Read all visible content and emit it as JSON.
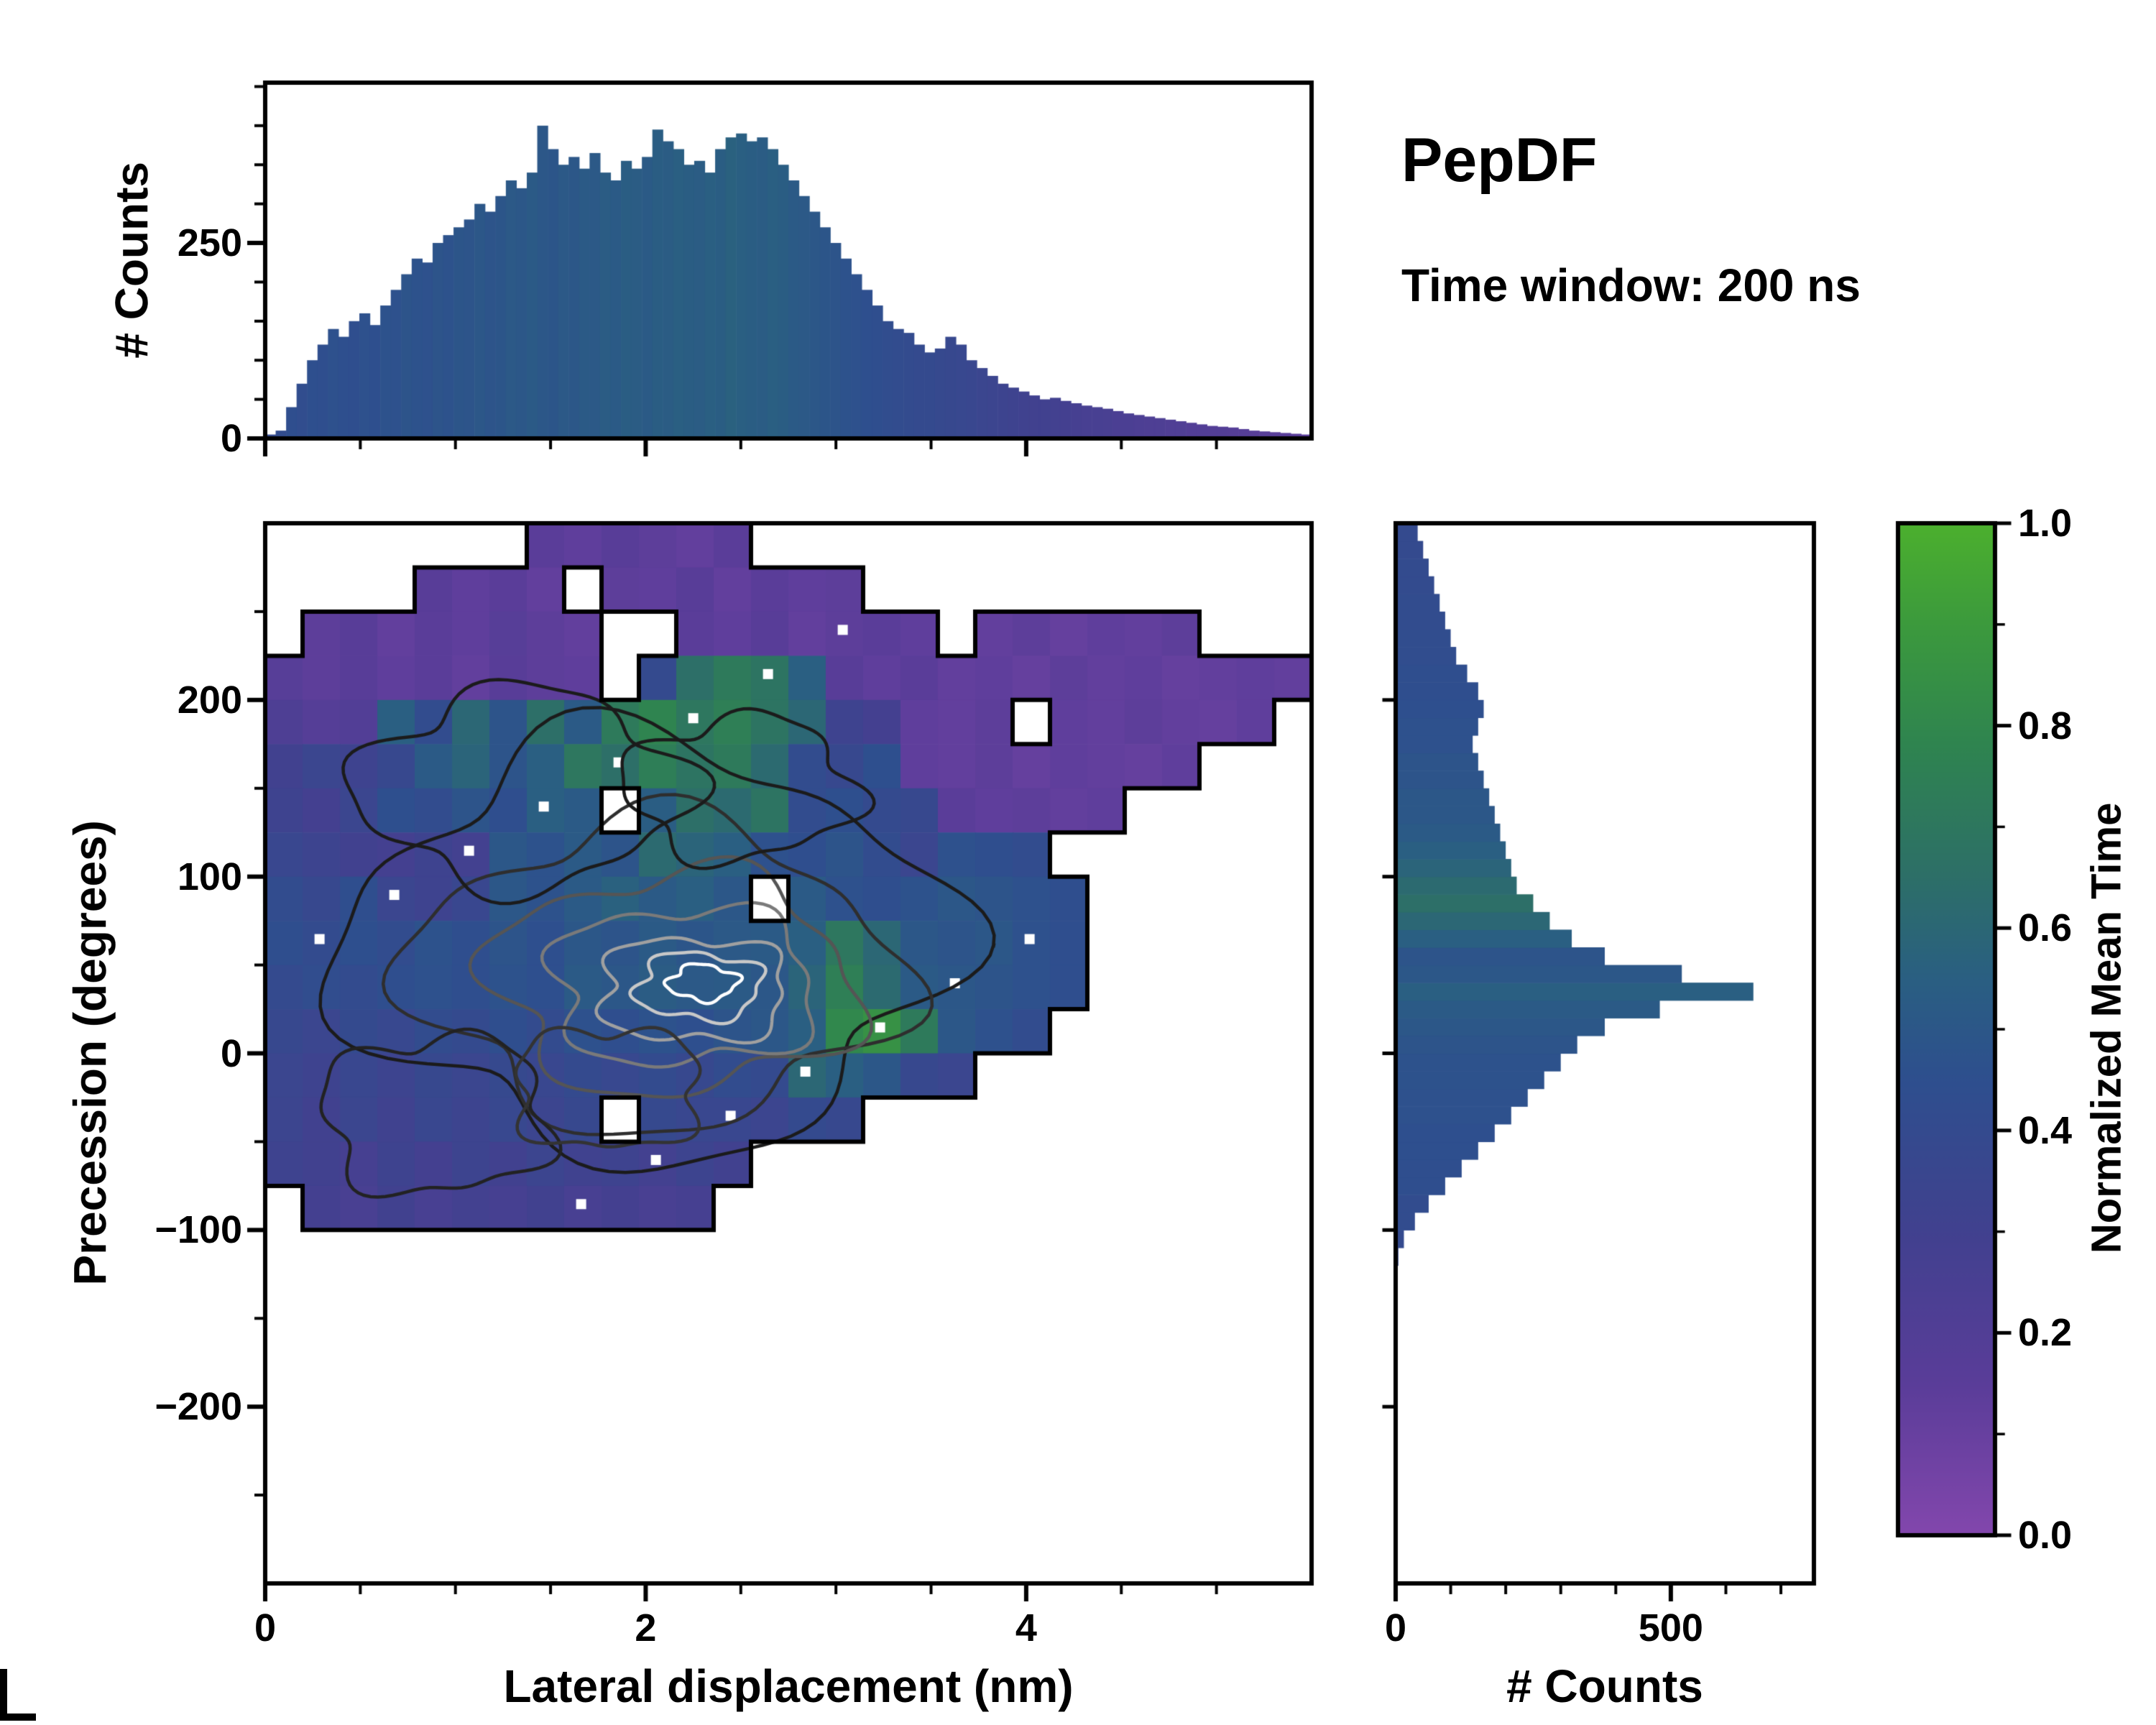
{
  "header": {
    "title": "PepDF",
    "subtitle": "Time window: 200 ns"
  },
  "colorbar": {
    "label": "Normalized Mean Time",
    "tick_values": [
      0,
      0.2,
      0.4,
      0.6,
      0.8,
      1.0
    ],
    "tick_labels": [
      "0.0",
      "0.2",
      "0.4",
      "0.6",
      "0.8",
      "1.0"
    ],
    "stops": [
      [
        0,
        "#8347ad"
      ],
      [
        0.15,
        "#5a3d99"
      ],
      [
        0.3,
        "#41418f"
      ],
      [
        0.45,
        "#2e4f8e"
      ],
      [
        0.55,
        "#2a5f82"
      ],
      [
        0.65,
        "#2d6f68"
      ],
      [
        0.78,
        "#2f8450"
      ],
      [
        0.9,
        "#3c9a3d"
      ],
      [
        1,
        "#4cb02e"
      ]
    ]
  },
  "chart_data": [
    {
      "type": "bar",
      "name": "lateral-displacement-histogram",
      "orientation": "vertical",
      "ylabel": "# Counts",
      "xlim": [
        0,
        5.5
      ],
      "ylim": [
        0,
        455
      ],
      "ytick_values": [
        0,
        250
      ],
      "ytick_labels": [
        "0",
        "250"
      ],
      "bin_start": 0,
      "bin_width": 0.055,
      "values": [
        5,
        10,
        40,
        70,
        100,
        120,
        140,
        130,
        150,
        160,
        145,
        170,
        190,
        210,
        230,
        225,
        250,
        260,
        270,
        280,
        300,
        290,
        310,
        330,
        320,
        340,
        400,
        370,
        350,
        360,
        345,
        365,
        340,
        330,
        355,
        345,
        360,
        395,
        380,
        370,
        350,
        355,
        340,
        370,
        385,
        390,
        380,
        385,
        370,
        350,
        330,
        310,
        290,
        270,
        250,
        230,
        210,
        190,
        170,
        150,
        140,
        135,
        120,
        110,
        115,
        130,
        120,
        100,
        90,
        80,
        70,
        65,
        60,
        55,
        50,
        52,
        48,
        45,
        42,
        40,
        38,
        35,
        32,
        30,
        28,
        26,
        24,
        22,
        20,
        18,
        16,
        15,
        14,
        12,
        10,
        9,
        8,
        7,
        6,
        5
      ],
      "color_values": [
        0.4,
        0.42,
        0.44,
        0.43,
        0.45,
        0.44,
        0.46,
        0.45,
        0.44,
        0.46,
        0.45,
        0.47,
        0.46,
        0.48,
        0.47,
        0.46,
        0.48,
        0.47,
        0.49,
        0.48,
        0.5,
        0.48,
        0.49,
        0.51,
        0.5,
        0.52,
        0.5,
        0.49,
        0.51,
        0.5,
        0.52,
        0.51,
        0.53,
        0.52,
        0.54,
        0.53,
        0.52,
        0.54,
        0.53,
        0.55,
        0.54,
        0.53,
        0.55,
        0.54,
        0.56,
        0.55,
        0.54,
        0.53,
        0.55,
        0.54,
        0.52,
        0.51,
        0.5,
        0.49,
        0.48,
        0.47,
        0.46,
        0.45,
        0.44,
        0.43,
        0.42,
        0.41,
        0.4,
        0.4,
        0.39,
        0.38,
        0.37,
        0.36,
        0.35,
        0.34,
        0.33,
        0.32,
        0.31,
        0.3,
        0.3,
        0.29,
        0.28,
        0.27,
        0.26,
        0.26,
        0.25,
        0.24,
        0.24,
        0.23,
        0.22,
        0.22,
        0.21,
        0.21,
        0.2,
        0.2,
        0.19,
        0.19,
        0.18,
        0.18,
        0.17,
        0.17,
        0.16,
        0.16,
        0.15,
        0.15
      ]
    },
    {
      "type": "heatmap",
      "name": "precession-vs-lateral-displacement-heatmap",
      "xlabel": "Lateral displacement (nm)",
      "ylabel": "Precession (degrees)",
      "color_label": "Normalized Mean Time",
      "xlim": [
        0,
        5.5
      ],
      "ylim": [
        -300,
        300
      ],
      "xtick_values": [
        0,
        2,
        4
      ],
      "xtick_labels": [
        "0",
        "2",
        "4"
      ],
      "ytick_values": [
        200,
        100,
        0,
        -100,
        -200
      ],
      "ytick_labels": [
        "200",
        "100",
        "0",
        "−100",
        "−200"
      ],
      "grid": {
        "ncols": 28,
        "nrows": 24,
        "x_min": 0,
        "x_max": 5.5,
        "y_max": 300,
        "y_min": -300
      },
      "values": [
        [
          null,
          null,
          null,
          null,
          null,
          null,
          null,
          0.15,
          0.13,
          0.16,
          0.14,
          0.12,
          0.15,
          null,
          null,
          null,
          null,
          null,
          null,
          null,
          null,
          null,
          null,
          null,
          null,
          null,
          null,
          null
        ],
        [
          null,
          null,
          null,
          null,
          0.16,
          0.13,
          0.15,
          0.12,
          null,
          0.14,
          0.13,
          0.16,
          0.12,
          0.15,
          0.13,
          0.14,
          null,
          null,
          null,
          null,
          null,
          null,
          null,
          null,
          null,
          null,
          null,
          null
        ],
        [
          null,
          0.14,
          0.16,
          0.12,
          0.15,
          0.13,
          0.17,
          0.14,
          0.12,
          null,
          null,
          0.15,
          0.13,
          0.16,
          0.12,
          0.14,
          0.15,
          0.13,
          null,
          0.12,
          0.14,
          0.11,
          0.13,
          0.12,
          0.14,
          null,
          null,
          null
        ],
        [
          0.17,
          0.14,
          0.16,
          0.13,
          0.15,
          0.12,
          0.16,
          0.14,
          0.13,
          null,
          0.4,
          0.65,
          0.72,
          0.68,
          0.55,
          0.16,
          0.13,
          0.15,
          0.12,
          0.13,
          0.11,
          0.14,
          0.12,
          0.13,
          0.11,
          0.12,
          0.13,
          0.12
        ],
        [
          0.22,
          0.18,
          0.2,
          0.55,
          0.42,
          0.6,
          0.48,
          0.65,
          0.52,
          0.72,
          0.78,
          0.7,
          0.75,
          0.68,
          0.6,
          0.32,
          0.28,
          0.13,
          0.12,
          0.14,
          null,
          0.13,
          0.12,
          0.14,
          0.12,
          0.11,
          0.13,
          null
        ],
        [
          0.3,
          0.35,
          0.32,
          0.38,
          0.52,
          0.58,
          0.48,
          0.55,
          0.7,
          0.65,
          0.74,
          0.68,
          0.72,
          0.62,
          0.42,
          0.38,
          0.45,
          0.13,
          0.12,
          0.14,
          0.11,
          0.13,
          0.12,
          0.11,
          0.13,
          null,
          null,
          null
        ],
        [
          0.32,
          0.28,
          0.35,
          0.45,
          0.42,
          0.48,
          0.44,
          0.55,
          0.52,
          null,
          0.54,
          0.65,
          0.62,
          0.68,
          0.42,
          0.45,
          0.4,
          0.38,
          0.15,
          0.13,
          0.14,
          0.12,
          0.13,
          null,
          null,
          null,
          null,
          null
        ],
        [
          0.36,
          0.33,
          0.3,
          0.28,
          0.32,
          0.29,
          0.5,
          0.47,
          0.52,
          0.48,
          0.62,
          0.58,
          0.55,
          0.46,
          0.44,
          0.48,
          0.42,
          0.35,
          0.46,
          0.44,
          0.42,
          null,
          null,
          null,
          null,
          null,
          null,
          null
        ],
        [
          0.42,
          0.38,
          0.44,
          0.35,
          0.32,
          0.36,
          0.5,
          0.47,
          0.52,
          0.56,
          0.52,
          0.55,
          0.5,
          null,
          0.52,
          0.46,
          0.44,
          0.47,
          0.5,
          0.48,
          0.46,
          0.44,
          null,
          null,
          null,
          null,
          null,
          null
        ],
        [
          0.44,
          0.41,
          0.45,
          0.42,
          0.47,
          0.44,
          0.48,
          0.45,
          0.5,
          0.48,
          0.52,
          0.49,
          0.51,
          0.52,
          0.55,
          0.7,
          0.6,
          0.5,
          0.48,
          0.5,
          0.46,
          0.44,
          null,
          null,
          null,
          null,
          null,
          null
        ],
        [
          0.4,
          0.43,
          0.41,
          0.44,
          0.46,
          0.44,
          0.47,
          0.45,
          0.52,
          0.5,
          0.53,
          0.51,
          0.52,
          0.5,
          0.58,
          0.75,
          0.62,
          0.52,
          0.5,
          0.48,
          0.46,
          0.44,
          null,
          null,
          null,
          null,
          null,
          null
        ],
        [
          0.38,
          0.35,
          0.4,
          0.37,
          0.42,
          0.4,
          0.44,
          0.41,
          0.46,
          0.44,
          0.47,
          0.45,
          0.48,
          0.5,
          0.55,
          0.8,
          0.85,
          0.72,
          0.5,
          0.46,
          0.42,
          null,
          null,
          null,
          null,
          null,
          null,
          null
        ],
        [
          0.35,
          0.32,
          0.36,
          0.33,
          0.38,
          0.35,
          0.39,
          0.36,
          0.4,
          0.37,
          0.41,
          0.38,
          0.42,
          0.4,
          0.6,
          0.55,
          0.5,
          0.38,
          0.35,
          null,
          null,
          null,
          null,
          null,
          null,
          null,
          null,
          null
        ],
        [
          0.34,
          0.3,
          0.35,
          0.31,
          0.36,
          0.33,
          0.37,
          0.34,
          0.38,
          null,
          0.39,
          0.36,
          0.36,
          0.34,
          0.4,
          0.38,
          null,
          null,
          null,
          null,
          null,
          null,
          null,
          null,
          null,
          null,
          null,
          null
        ],
        [
          0.32,
          0.3,
          0.27,
          0.32,
          0.28,
          0.33,
          0.3,
          0.34,
          0.31,
          0.32,
          0.29,
          0.33,
          0.3,
          null,
          null,
          null,
          null,
          null,
          null,
          null,
          null,
          null,
          null,
          null,
          null,
          null,
          null,
          null
        ],
        [
          null,
          0.28,
          0.25,
          0.3,
          0.26,
          0.29,
          0.27,
          0.3,
          0.26,
          0.28,
          0.25,
          0.27,
          null,
          null,
          null,
          null,
          null,
          null,
          null,
          null,
          null,
          null,
          null,
          null,
          null,
          null,
          null,
          null
        ],
        [
          null,
          null,
          null,
          null,
          null,
          null,
          null,
          null,
          null,
          null,
          null,
          null,
          null,
          null,
          null,
          null,
          null,
          null,
          null,
          null,
          null,
          null,
          null,
          null,
          null,
          null,
          null,
          null
        ],
        [
          null,
          null,
          null,
          null,
          null,
          null,
          null,
          null,
          null,
          null,
          null,
          null,
          null,
          null,
          null,
          null,
          null,
          null,
          null,
          null,
          null,
          null,
          null,
          null,
          null,
          null,
          null,
          null
        ],
        [
          null,
          null,
          null,
          null,
          null,
          null,
          null,
          null,
          null,
          null,
          null,
          null,
          null,
          null,
          null,
          null,
          null,
          null,
          null,
          null,
          null,
          null,
          null,
          null,
          null,
          null,
          null,
          null
        ],
        [
          null,
          null,
          null,
          null,
          null,
          null,
          null,
          null,
          null,
          null,
          null,
          null,
          null,
          null,
          null,
          null,
          null,
          null,
          null,
          null,
          null,
          null,
          null,
          null,
          null,
          null,
          null,
          null
        ],
        [
          null,
          null,
          null,
          null,
          null,
          null,
          null,
          null,
          null,
          null,
          null,
          null,
          null,
          null,
          null,
          null,
          null,
          null,
          null,
          null,
          null,
          null,
          null,
          null,
          null,
          null,
          null,
          null
        ],
        [
          null,
          null,
          null,
          null,
          null,
          null,
          null,
          null,
          null,
          null,
          null,
          null,
          null,
          null,
          null,
          null,
          null,
          null,
          null,
          null,
          null,
          null,
          null,
          null,
          null,
          null,
          null,
          null
        ],
        [
          null,
          null,
          null,
          null,
          null,
          null,
          null,
          null,
          null,
          null,
          null,
          null,
          null,
          null,
          null,
          null,
          null,
          null,
          null,
          null,
          null,
          null,
          null,
          null,
          null,
          null,
          null,
          null
        ],
        [
          null,
          null,
          null,
          null,
          null,
          null,
          null,
          null,
          null,
          null,
          null,
          null,
          null,
          null,
          null,
          null,
          null,
          null,
          null,
          null,
          null,
          null,
          null,
          null,
          null,
          null,
          null,
          null
        ]
      ],
      "contour_rings": [
        {
          "cx": 2.0,
          "cy": 60,
          "rx": 1.55,
          "ry": 115,
          "color": "#1b1b1b",
          "seed": 1
        },
        {
          "cx": 2.05,
          "cy": 45,
          "rx": 1.25,
          "ry": 85,
          "color": "#2e2e2e",
          "seed": 2
        },
        {
          "cx": 2.15,
          "cy": 40,
          "rx": 0.95,
          "ry": 62,
          "color": "#555555",
          "seed": 3
        },
        {
          "cx": 2.2,
          "cy": 38,
          "rx": 0.7,
          "ry": 45,
          "color": "#7a7a7a",
          "seed": 4
        },
        {
          "cx": 2.25,
          "cy": 36,
          "rx": 0.5,
          "ry": 30,
          "color": "#a0a0a0",
          "seed": 5
        },
        {
          "cx": 2.28,
          "cy": 38,
          "rx": 0.33,
          "ry": 19,
          "color": "#c8c8c8",
          "seed": 6
        },
        {
          "cx": 2.3,
          "cy": 40,
          "rx": 0.18,
          "ry": 10,
          "color": "#ffffff",
          "seed": 7
        },
        {
          "cx": 1.35,
          "cy": 150,
          "rx": 0.85,
          "ry": 55,
          "color": "#1b1b1b",
          "seed": 8
        },
        {
          "cx": 2.5,
          "cy": 150,
          "rx": 0.6,
          "ry": 40,
          "color": "#1b1b1b",
          "seed": 9
        },
        {
          "cx": 0.9,
          "cy": -35,
          "rx": 0.6,
          "ry": 45,
          "color": "#222222",
          "seed": 10
        },
        {
          "cx": 1.8,
          "cy": -20,
          "rx": 0.5,
          "ry": 35,
          "color": "#333333",
          "seed": 11
        }
      ]
    },
    {
      "type": "bar",
      "name": "precession-histogram",
      "orientation": "horizontal",
      "xlabel": "# Counts",
      "xlim": [
        0,
        760
      ],
      "ylim": [
        -300,
        300
      ],
      "xtick_values": [
        0,
        500
      ],
      "xtick_labels": [
        "0",
        "500"
      ],
      "bin_start": -300,
      "bin_width": 10,
      "values": [
        0,
        0,
        0,
        0,
        0,
        0,
        0,
        0,
        0,
        0,
        0,
        0,
        0,
        0,
        0,
        0,
        0,
        0,
        5,
        15,
        35,
        60,
        90,
        120,
        150,
        180,
        210,
        240,
        270,
        300,
        330,
        380,
        480,
        650,
        520,
        380,
        320,
        280,
        250,
        220,
        210,
        200,
        190,
        180,
        170,
        160,
        150,
        140,
        150,
        160,
        150,
        130,
        110,
        100,
        90,
        80,
        70,
        60,
        50,
        40
      ],
      "color_values": [
        0.45,
        0.45,
        0.45,
        0.45,
        0.45,
        0.45,
        0.45,
        0.45,
        0.45,
        0.45,
        0.45,
        0.45,
        0.45,
        0.45,
        0.45,
        0.45,
        0.45,
        0.45,
        0.4,
        0.4,
        0.42,
        0.42,
        0.44,
        0.44,
        0.45,
        0.45,
        0.46,
        0.46,
        0.47,
        0.47,
        0.48,
        0.5,
        0.52,
        0.55,
        0.5,
        0.48,
        0.55,
        0.6,
        0.65,
        0.62,
        0.58,
        0.55,
        0.52,
        0.5,
        0.5,
        0.48,
        0.48,
        0.46,
        0.46,
        0.45,
        0.44,
        0.44,
        0.43,
        0.43,
        0.42,
        0.42,
        0.41,
        0.41,
        0.4,
        0.4
      ]
    }
  ]
}
